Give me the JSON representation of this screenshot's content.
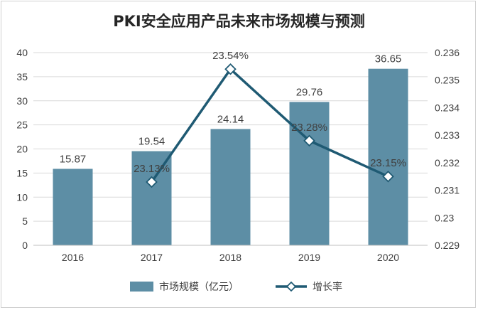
{
  "chart_data": {
    "type": "bar",
    "title": "PKI安全应用产品未来市场规模与预测",
    "categories": [
      "2016",
      "2017",
      "2018",
      "2019",
      "2020"
    ],
    "series": [
      {
        "name": "市场规模（亿元）",
        "type": "bar",
        "axis": "left",
        "values": [
          15.87,
          19.54,
          24.14,
          29.76,
          36.65
        ],
        "labels": [
          "15.87",
          "19.54",
          "24.14",
          "29.76",
          "36.65"
        ],
        "color": "#5d8ea5"
      },
      {
        "name": "增长率",
        "type": "line",
        "axis": "right",
        "values": [
          null,
          0.2313,
          0.2354,
          0.2328,
          0.2315
        ],
        "labels": [
          "",
          "23.13%",
          "23.54%",
          "23.28%",
          "23.15%"
        ],
        "color": "#1f5a73"
      }
    ],
    "ylim": [
      0,
      40
    ],
    "y_ticks": [
      "0",
      "5",
      "10",
      "15",
      "20",
      "25",
      "30",
      "35",
      "40"
    ],
    "y2lim": [
      0.229,
      0.236
    ],
    "y2_ticks": [
      "0.229",
      "0.23",
      "0.231",
      "0.232",
      "0.233",
      "0.234",
      "0.235",
      "0.236"
    ],
    "grid": true,
    "legend_position": "bottom"
  }
}
